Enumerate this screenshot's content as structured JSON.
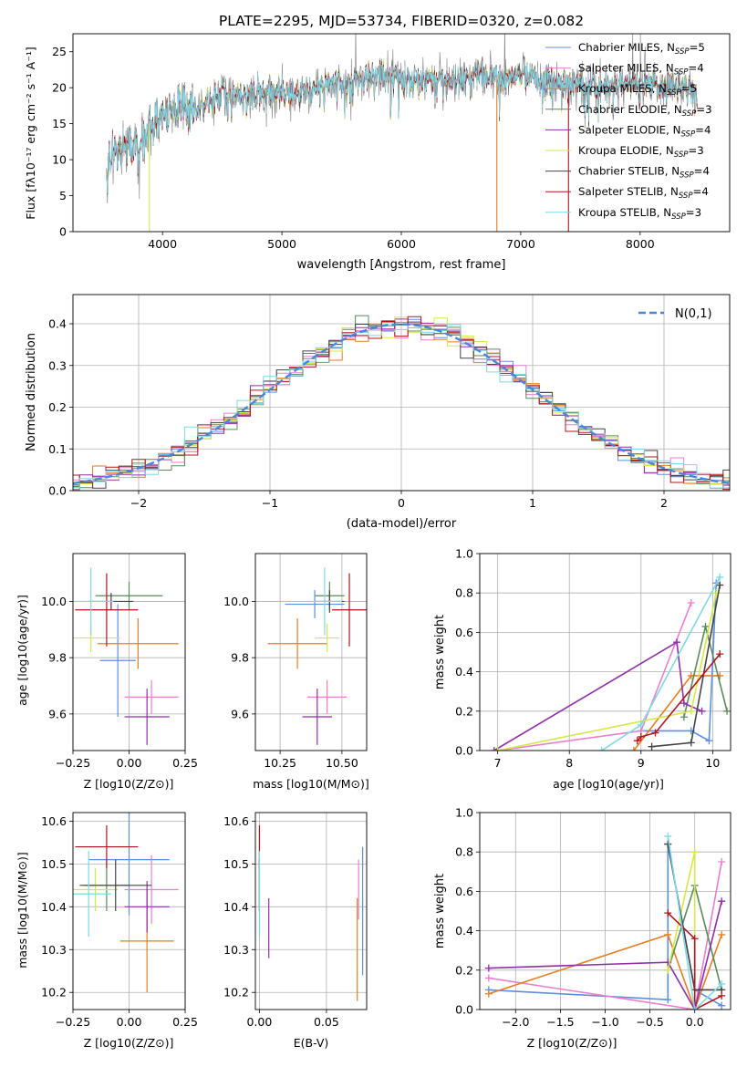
{
  "title": "PLATE=2295, MJD=53734, FIBERID=0320, z=0.082",
  "colors": {
    "chabrier_miles": "#5b8fe0",
    "salpeter_miles": "#e87fcf",
    "kroupa_miles": "#e67e22",
    "chabrier_elodie": "#5a8a5a",
    "salpeter_elodie": "#8e2fa8",
    "kroupa_elodie": "#d4e84a",
    "chabrier_stelib": "#444444",
    "salpeter_stelib": "#b0151c",
    "kroupa_stelib": "#7fd8e6",
    "normal_curve": "#4a86d6"
  },
  "chart_data": [
    {
      "id": "spectrum",
      "type": "line",
      "xlabel": "wavelength [Angstrom, rest frame]",
      "ylabel": "Flux [fλ10⁻¹⁷ erg cm⁻² s⁻¹ A⁻¹]",
      "xlim": [
        3250,
        8750
      ],
      "ylim": [
        0,
        27.5
      ],
      "xticks": [
        4000,
        5000,
        6000,
        7000,
        8000
      ],
      "yticks": [
        0,
        5,
        10,
        15,
        20,
        25
      ],
      "legend_position": "top-right",
      "legend": [
        {
          "label": "Chabrier MILES, N",
          "sub": "SSP",
          "suffix": "=5",
          "color_key": "chabrier_miles"
        },
        {
          "label": "Salpeter MILES, N",
          "sub": "SSP",
          "suffix": "=4",
          "color_key": "salpeter_miles"
        },
        {
          "label": "Kroupa MILES, N",
          "sub": "SSP",
          "suffix": "=5",
          "color_key": "kroupa_miles"
        },
        {
          "label": "Chabrier ELODIE, N",
          "sub": "SSP",
          "suffix": "=3",
          "color_key": "chabrier_elodie"
        },
        {
          "label": "Salpeter ELODIE, N",
          "sub": "SSP",
          "suffix": "=4",
          "color_key": "salpeter_elodie"
        },
        {
          "label": "Kroupa ELODIE, N",
          "sub": "SSP",
          "suffix": "=3",
          "color_key": "kroupa_elodie"
        },
        {
          "label": "Chabrier STELIB, N",
          "sub": "SSP",
          "suffix": "=4",
          "color_key": "chabrier_stelib"
        },
        {
          "label": "Salpeter STELIB, N",
          "sub": "SSP",
          "suffix": "=4",
          "color_key": "salpeter_stelib"
        },
        {
          "label": "Kroupa STELIB, N",
          "sub": "SSP",
          "suffix": "=3",
          "color_key": "kroupa_stelib"
        }
      ],
      "continuum": [
        [
          3530,
          9.5
        ],
        [
          3600,
          11.2
        ],
        [
          3700,
          11.5
        ],
        [
          3800,
          12.8
        ],
        [
          3900,
          14.8
        ],
        [
          4000,
          15.5
        ],
        [
          4100,
          17.0
        ],
        [
          4200,
          17.5
        ],
        [
          4300,
          17.0
        ],
        [
          4400,
          18.2
        ],
        [
          4500,
          19.0
        ],
        [
          4700,
          19.2
        ],
        [
          4900,
          19.5
        ],
        [
          5100,
          19.0
        ],
        [
          5200,
          19.8
        ],
        [
          5400,
          20.5
        ],
        [
          5600,
          20.8
        ],
        [
          5800,
          21.8
        ],
        [
          6000,
          21.2
        ],
        [
          6200,
          21.0
        ],
        [
          6400,
          21.3
        ],
        [
          6600,
          21.6
        ],
        [
          6800,
          21.5
        ],
        [
          7000,
          21.6
        ],
        [
          7200,
          20.8
        ],
        [
          7400,
          20.7
        ],
        [
          7600,
          20.2
        ],
        [
          7800,
          20.8
        ],
        [
          8000,
          20.6
        ],
        [
          8200,
          20.2
        ],
        [
          8400,
          19.7
        ]
      ],
      "drops": [
        {
          "series": "kroupa_elodie",
          "x": 3890
        },
        {
          "series": "kroupa_miles",
          "x": 6800
        },
        {
          "series": "salpeter_stelib",
          "x": 7400
        }
      ]
    },
    {
      "id": "residuals",
      "type": "histogram",
      "xlabel": "(data-model)/error",
      "ylabel": "Normed distribution",
      "xlim": [
        -2.5,
        2.5
      ],
      "ylim": [
        0,
        0.47
      ],
      "xticks": [
        -2,
        -1,
        0,
        1,
        2
      ],
      "yticks": [
        0.0,
        0.1,
        0.2,
        0.3,
        0.4
      ],
      "bin_width": 0.1,
      "legend": {
        "label": "N(0,1)",
        "position": "top-right"
      }
    },
    {
      "id": "z-age",
      "type": "errorbar",
      "xlabel": "Z [log10(Z/Z⊙)]",
      "ylabel": "age [log10(age/yr)]",
      "xlim": [
        -0.25,
        0.25
      ],
      "ylim": [
        9.47,
        10.17
      ],
      "xticks": [
        -0.25,
        0.0,
        0.25
      ],
      "yticks": [
        9.6,
        9.8,
        10.0
      ],
      "points": [
        {
          "series": "chabrier_miles",
          "x": -0.05,
          "xerr": 0.08,
          "y": 9.79,
          "yerr": 0.2
        },
        {
          "series": "salpeter_miles",
          "x": 0.1,
          "xerr": 0.12,
          "y": 9.66,
          "yerr": 0.06
        },
        {
          "series": "kroupa_miles",
          "x": 0.04,
          "xerr": 0.18,
          "y": 9.85,
          "yerr": 0.09
        },
        {
          "series": "chabrier_elodie",
          "x": 0.0,
          "xerr": 0.15,
          "y": 10.02,
          "yerr": 0.05
        },
        {
          "series": "salpeter_elodie",
          "x": 0.08,
          "xerr": 0.1,
          "y": 9.59,
          "yerr": 0.1
        },
        {
          "series": "kroupa_elodie",
          "x": -0.17,
          "xerr": 0.13,
          "y": 9.87,
          "yerr": 0.05
        },
        {
          "series": "chabrier_stelib",
          "x": -0.08,
          "xerr": 0.1,
          "y": 10.0,
          "yerr": 0.03
        },
        {
          "series": "salpeter_stelib",
          "x": -0.1,
          "xerr": 0.14,
          "y": 9.97,
          "yerr": 0.13
        },
        {
          "series": "kroupa_stelib",
          "x": -0.17,
          "xerr": 0.1,
          "y": 10.0,
          "yerr": 0.12
        }
      ]
    },
    {
      "id": "mass-age",
      "type": "errorbar",
      "xlabel": "mass [log10(M/M⊙)]",
      "xlim": [
        10.15,
        10.6
      ],
      "ylim": [
        9.47,
        10.17
      ],
      "xticks": [
        10.25,
        10.5
      ],
      "yticks": [
        9.6,
        9.8,
        10.0
      ],
      "points": [
        {
          "series": "chabrier_miles",
          "x": 10.39,
          "xerr": 0.12,
          "y": 9.99,
          "yerr": 0.05
        },
        {
          "series": "salpeter_miles",
          "x": 10.44,
          "xerr": 0.08,
          "y": 9.66,
          "yerr": 0.06
        },
        {
          "series": "kroupa_miles",
          "x": 10.32,
          "xerr": 0.12,
          "y": 9.85,
          "yerr": 0.09
        },
        {
          "series": "chabrier_elodie",
          "x": 10.45,
          "xerr": 0.06,
          "y": 10.02,
          "yerr": 0.05
        },
        {
          "series": "salpeter_elodie",
          "x": 10.4,
          "xerr": 0.06,
          "y": 9.59,
          "yerr": 0.1
        },
        {
          "series": "kroupa_elodie",
          "x": 10.44,
          "xerr": 0.05,
          "y": 9.87,
          "yerr": 0.05
        },
        {
          "series": "chabrier_stelib",
          "x": 10.45,
          "xerr": 0.06,
          "y": 10.0,
          "yerr": 0.04
        },
        {
          "series": "salpeter_stelib",
          "x": 10.53,
          "xerr": 0.07,
          "y": 9.97,
          "yerr": 0.13
        },
        {
          "series": "kroupa_stelib",
          "x": 10.43,
          "xerr": 0.07,
          "y": 10.0,
          "yerr": 0.12
        }
      ]
    },
    {
      "id": "age-weight",
      "type": "line",
      "xlabel": "age [log10(age/yr)]",
      "ylabel": "mass weight",
      "xlim": [
        6.75,
        10.25
      ],
      "ylim": [
        0,
        1.0
      ],
      "xticks": [
        7,
        8,
        9,
        10
      ],
      "yticks": [
        0.0,
        0.2,
        0.4,
        0.6,
        0.8,
        1.0
      ],
      "series": [
        {
          "key": "chabrier_miles",
          "points": [
            [
              9.0,
              0.1
            ],
            [
              9.7,
              0.1
            ],
            [
              9.95,
              0.05
            ],
            [
              10.05,
              0.85
            ]
          ]
        },
        {
          "key": "salpeter_miles",
          "points": [
            [
              7.0,
              0.0
            ],
            [
              9.0,
              0.1
            ],
            [
              9.7,
              0.75
            ]
          ]
        },
        {
          "key": "kroupa_miles",
          "points": [
            [
              8.9,
              0.0
            ],
            [
              9.7,
              0.38
            ],
            [
              10.1,
              0.38
            ]
          ]
        },
        {
          "key": "chabrier_elodie",
          "points": [
            [
              9.6,
              0.17
            ],
            [
              9.9,
              0.63
            ],
            [
              10.2,
              0.2
            ]
          ]
        },
        {
          "key": "salpeter_elodie",
          "points": [
            [
              6.95,
              0.0
            ],
            [
              9.5,
              0.55
            ],
            [
              9.6,
              0.24
            ],
            [
              9.85,
              0.2
            ]
          ]
        },
        {
          "key": "kroupa_elodie",
          "points": [
            [
              7.0,
              0.0
            ],
            [
              9.7,
              0.2
            ],
            [
              10.05,
              0.8
            ]
          ]
        },
        {
          "key": "chabrier_stelib",
          "points": [
            [
              9.15,
              0.02
            ],
            [
              9.7,
              0.04
            ],
            [
              10.1,
              0.84
            ]
          ]
        },
        {
          "key": "salpeter_stelib",
          "points": [
            [
              8.95,
              0.05
            ],
            [
              9.0,
              0.07
            ],
            [
              9.2,
              0.09
            ],
            [
              10.1,
              0.49
            ]
          ]
        },
        {
          "key": "kroupa_stelib",
          "points": [
            [
              8.45,
              0.0
            ],
            [
              9.0,
              0.13
            ],
            [
              10.1,
              0.88
            ]
          ]
        }
      ]
    },
    {
      "id": "z-mass",
      "type": "errorbar",
      "xlabel": "Z [log10(Z/Z⊙)]",
      "ylabel": "mass [log10(M/M⊙)]",
      "xlim": [
        -0.25,
        0.25
      ],
      "ylim": [
        10.16,
        10.62
      ],
      "xticks": [
        -0.25,
        0.0,
        0.25
      ],
      "yticks": [
        10.2,
        10.3,
        10.4,
        10.5,
        10.6
      ],
      "points": [
        {
          "series": "chabrier_miles",
          "x": 0.0,
          "xerr": 0.18,
          "y": 10.51,
          "yerr": 0.13
        },
        {
          "series": "salpeter_miles",
          "x": 0.1,
          "xerr": 0.12,
          "y": 10.44,
          "yerr": 0.08
        },
        {
          "series": "kroupa_miles",
          "x": 0.08,
          "xerr": 0.12,
          "y": 10.32,
          "yerr": 0.12
        },
        {
          "series": "chabrier_elodie",
          "x": -0.1,
          "xerr": 0.1,
          "y": 10.45,
          "yerr": 0.06
        },
        {
          "series": "salpeter_elodie",
          "x": 0.08,
          "xerr": 0.1,
          "y": 10.4,
          "yerr": 0.06
        },
        {
          "series": "kroupa_elodie",
          "x": -0.15,
          "xerr": 0.1,
          "y": 10.44,
          "yerr": 0.05
        },
        {
          "series": "chabrier_stelib",
          "x": -0.06,
          "xerr": 0.16,
          "y": 10.45,
          "yerr": 0.06
        },
        {
          "series": "salpeter_stelib",
          "x": -0.1,
          "xerr": 0.14,
          "y": 10.54,
          "yerr": 0.05
        },
        {
          "series": "kroupa_stelib",
          "x": -0.18,
          "xerr": 0.1,
          "y": 10.43,
          "yerr": 0.1
        }
      ]
    },
    {
      "id": "ebv-mass",
      "type": "errorbar",
      "xlabel": "E(B-V)",
      "xlim": [
        -0.003,
        0.08
      ],
      "ylim": [
        10.16,
        10.62
      ],
      "xticks": [
        0.0,
        0.05
      ],
      "yticks": [
        10.2,
        10.3,
        10.4,
        10.5,
        10.6
      ],
      "points": [
        {
          "series": "chabrier_miles",
          "x": 0.077,
          "xerr": 0,
          "y": 10.39,
          "yerr": 0.15
        },
        {
          "series": "salpeter_miles",
          "x": 0.074,
          "xerr": 0,
          "y": 10.44,
          "yerr": 0.07
        },
        {
          "series": "kroupa_miles",
          "x": 0.073,
          "xerr": 0,
          "y": 10.3,
          "yerr": 0.12
        },
        {
          "series": "chabrier_elodie",
          "x": 0.0,
          "xerr": 0,
          "y": 10.45,
          "yerr": 0.06
        },
        {
          "series": "salpeter_elodie",
          "x": 0.007,
          "xerr": 0,
          "y": 10.35,
          "yerr": 0.07
        },
        {
          "series": "kroupa_elodie",
          "x": 0.0,
          "xerr": 0,
          "y": 10.44,
          "yerr": 0.05
        },
        {
          "series": "chabrier_stelib",
          "x": 0.0,
          "xerr": 0,
          "y": 10.45,
          "yerr": 0.06
        },
        {
          "series": "salpeter_stelib",
          "x": 0.0,
          "xerr": 0,
          "y": 10.54,
          "yerr": 0.05
        },
        {
          "series": "kroupa_stelib",
          "x": 0.0,
          "xerr": 0,
          "y": 10.43,
          "yerr": 0.1
        }
      ]
    },
    {
      "id": "z-weight",
      "type": "line",
      "xlabel": "Z [log10(Z/Z⊙)]",
      "ylabel": "mass weight",
      "xlim": [
        -2.4,
        0.4
      ],
      "ylim": [
        0,
        1.0
      ],
      "xticks": [
        -2.0,
        -1.5,
        -1.0,
        -0.5,
        0.0
      ],
      "yticks": [
        0.0,
        0.2,
        0.4,
        0.6,
        0.8,
        1.0
      ],
      "series": [
        {
          "key": "chabrier_miles",
          "points": [
            [
              -2.3,
              0.1
            ],
            [
              -0.3,
              0.05
            ],
            [
              -0.3,
              0.84
            ],
            [
              0.0,
              0.1
            ],
            [
              0.3,
              0.02
            ]
          ]
        },
        {
          "key": "salpeter_miles",
          "points": [
            [
              -2.3,
              0.16
            ],
            [
              0.0,
              0.0
            ],
            [
              0.3,
              0.75
            ]
          ]
        },
        {
          "key": "kroupa_miles",
          "points": [
            [
              -2.3,
              0.08
            ],
            [
              -0.3,
              0.38
            ],
            [
              0.0,
              0.0
            ],
            [
              0.3,
              0.38
            ]
          ]
        },
        {
          "key": "chabrier_elodie",
          "points": [
            [
              -0.3,
              0.2
            ],
            [
              0.0,
              0.63
            ],
            [
              0.3,
              0.1
            ]
          ]
        },
        {
          "key": "salpeter_elodie",
          "points": [
            [
              -2.3,
              0.21
            ],
            [
              -0.3,
              0.24
            ],
            [
              0.0,
              0.0
            ],
            [
              0.3,
              0.55
            ]
          ]
        },
        {
          "key": "kroupa_elodie",
          "points": [
            [
              -0.3,
              0.2
            ],
            [
              0.0,
              0.8
            ],
            [
              0.0,
              0.0
            ]
          ]
        },
        {
          "key": "chabrier_stelib",
          "points": [
            [
              -0.3,
              0.84
            ],
            [
              0.0,
              0.1
            ],
            [
              0.3,
              0.1
            ]
          ]
        },
        {
          "key": "salpeter_stelib",
          "points": [
            [
              -0.3,
              0.49
            ],
            [
              0.0,
              0.36
            ],
            [
              0.0,
              0.0
            ],
            [
              0.3,
              0.07
            ]
          ]
        },
        {
          "key": "kroupa_stelib",
          "points": [
            [
              -0.3,
              0.88
            ],
            [
              0.0,
              0.0
            ],
            [
              0.3,
              0.13
            ]
          ]
        }
      ]
    }
  ]
}
